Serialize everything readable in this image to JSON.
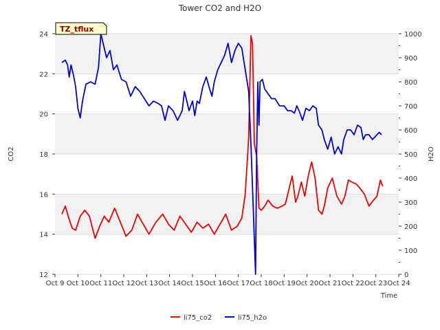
{
  "chart_data": {
    "type": "line",
    "title": "Tower CO2 and H2O",
    "xlabel": "Time",
    "ylabel": "CO2",
    "y2label": "H2O",
    "badge": "TZ_tflux",
    "xlim": [
      0,
      15
    ],
    "ylim": [
      12,
      24
    ],
    "y2lim": [
      0,
      1000
    ],
    "x_ticks": [
      "Oct 9",
      "Oct 10",
      "Oct 11",
      "Oct 12",
      "Oct 13",
      "Oct 14",
      "Oct 15",
      "Oct 16",
      "Oct 17",
      "Oct 18",
      "Oct 19",
      "Oct 20",
      "Oct 21",
      "Oct 22",
      "Oct 23",
      "Oct 24"
    ],
    "y_ticks": [
      12,
      14,
      16,
      18,
      20,
      22,
      24
    ],
    "y2_ticks": [
      0,
      100,
      200,
      300,
      400,
      500,
      600,
      700,
      800,
      900,
      1000
    ],
    "legend_position": "bottom-center",
    "series": [
      {
        "name": "li75_co2",
        "axis": "left",
        "color": "#ee0000",
        "x": [
          0.3,
          0.45,
          0.6,
          0.75,
          0.9,
          1.1,
          1.3,
          1.5,
          1.75,
          1.95,
          2.15,
          2.35,
          2.6,
          2.85,
          3.1,
          3.35,
          3.6,
          3.85,
          4.1,
          4.4,
          4.7,
          4.95,
          5.2,
          5.45,
          5.7,
          5.95,
          6.2,
          6.45,
          6.7,
          6.95,
          7.2,
          7.45,
          7.7,
          7.95,
          8.15,
          8.3,
          8.45,
          8.55,
          8.62,
          8.7,
          8.8,
          8.9,
          9.0,
          9.15,
          9.3,
          9.5,
          9.7,
          9.9,
          10.05,
          10.2,
          10.35,
          10.5,
          10.6,
          10.75,
          10.9,
          11.05,
          11.2,
          11.35,
          11.5,
          11.65,
          11.75,
          11.9,
          12.1,
          12.3,
          12.5,
          12.65,
          12.8,
          12.95,
          13.15,
          13.3,
          13.5,
          13.7,
          13.9,
          14.05,
          14.2,
          14.3
        ],
        "values": [
          15.0,
          15.4,
          14.8,
          14.3,
          14.2,
          14.9,
          15.2,
          14.9,
          13.8,
          14.4,
          14.9,
          14.6,
          15.3,
          14.6,
          13.9,
          14.2,
          15.0,
          14.5,
          14.0,
          14.6,
          15.0,
          14.5,
          14.2,
          14.9,
          14.5,
          14.1,
          14.6,
          14.3,
          14.5,
          14.0,
          14.5,
          15.0,
          14.2,
          14.4,
          14.8,
          16.0,
          18.8,
          23.9,
          23.5,
          18.5,
          17.9,
          15.3,
          15.2,
          15.4,
          15.7,
          15.4,
          15.3,
          15.4,
          15.5,
          16.2,
          16.9,
          15.6,
          15.9,
          16.6,
          15.9,
          16.9,
          17.6,
          16.8,
          15.2,
          15.0,
          15.4,
          16.3,
          16.8,
          15.9,
          15.5,
          15.9,
          16.7,
          16.6,
          16.5,
          16.3,
          16.0,
          15.4,
          15.7,
          15.9,
          16.7,
          16.4
        ]
      },
      {
        "name": "li75_h2o",
        "axis": "right",
        "color": "#0000cc",
        "x": [
          0.3,
          0.45,
          0.55,
          0.62,
          0.7,
          0.8,
          0.9,
          1.0,
          1.1,
          1.2,
          1.35,
          1.55,
          1.75,
          1.9,
          2.0,
          2.1,
          2.25,
          2.4,
          2.55,
          2.7,
          2.9,
          3.1,
          3.3,
          3.5,
          3.7,
          3.9,
          4.1,
          4.3,
          4.5,
          4.65,
          4.8,
          4.95,
          5.15,
          5.35,
          5.55,
          5.65,
          5.75,
          5.85,
          6.0,
          6.1,
          6.2,
          6.3,
          6.45,
          6.6,
          6.75,
          6.85,
          6.95,
          7.1,
          7.25,
          7.4,
          7.55,
          7.7,
          7.85,
          8.0,
          8.15,
          8.3,
          8.45,
          8.55,
          8.65,
          8.75,
          8.8,
          8.85,
          8.9,
          8.95,
          9.05,
          9.15,
          9.3,
          9.45,
          9.6,
          9.8,
          10.0,
          10.15,
          10.3,
          10.45,
          10.55,
          10.65,
          10.8,
          10.95,
          11.1,
          11.25,
          11.4,
          11.5,
          11.65,
          11.75,
          11.9,
          12.05,
          12.2,
          12.35,
          12.5,
          12.6,
          12.75,
          12.9,
          13.05,
          13.2,
          13.35,
          13.45,
          13.55,
          13.7,
          13.85,
          13.95,
          14.05,
          14.15,
          14.25
        ],
        "values": [
          880,
          890,
          870,
          820,
          870,
          830,
          780,
          690,
          650,
          720,
          790,
          800,
          790,
          860,
          1000,
          960,
          900,
          930,
          850,
          870,
          810,
          800,
          740,
          780,
          760,
          730,
          700,
          720,
          710,
          700,
          640,
          700,
          680,
          640,
          680,
          760,
          720,
          680,
          720,
          660,
          720,
          710,
          780,
          820,
          770,
          740,
          800,
          850,
          880,
          910,
          960,
          880,
          930,
          960,
          940,
          850,
          760,
          540,
          280,
          0,
          500,
          800,
          620,
          800,
          810,
          770,
          750,
          730,
          730,
          700,
          700,
          680,
          680,
          670,
          700,
          680,
          640,
          690,
          680,
          700,
          690,
          620,
          600,
          560,
          520,
          570,
          500,
          530,
          500,
          560,
          600,
          600,
          580,
          620,
          610,
          560,
          580,
          580,
          560,
          570,
          580,
          590,
          580
        ]
      }
    ]
  }
}
